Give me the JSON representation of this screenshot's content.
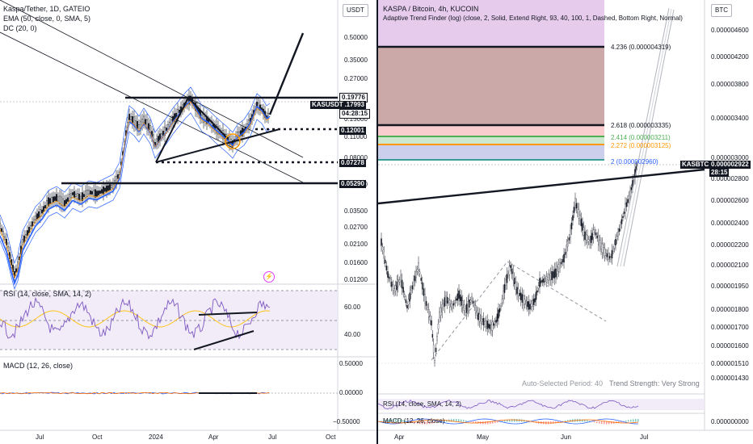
{
  "left": {
    "legend": {
      "line1": "Kaspa/Tether, 1D, GATEIO",
      "line2": "EMA (50, close, 0, SMA, 5)",
      "line3": "DC (20, 0)"
    },
    "currency": "USDT",
    "price_axis": [
      "0.50000",
      "0.35000",
      "0.27000",
      "0.15000",
      "0.11000",
      "0.08000",
      "0.05290",
      "0.03500",
      "0.02700",
      "0.02100",
      "0.01600",
      "0.01200"
    ],
    "price_tags": [
      {
        "value": "0.19776",
        "style": "light"
      },
      {
        "value": "0.17993",
        "style": "dark"
      },
      {
        "value": "04:28:15",
        "style": "light"
      },
      {
        "value": "0.12001",
        "style": "dark"
      },
      {
        "value": "0.07278",
        "style": "dark"
      },
      {
        "value": "0.05290",
        "style": "dark"
      }
    ],
    "symbol_tag": "KASUSDT",
    "rsi": {
      "label": "RSI (14, close, SMA, 14, 2)",
      "levels": [
        "60.00",
        "40.00"
      ]
    },
    "macd": {
      "label": "MACD (12, 26, close)",
      "levels": [
        "0.50000",
        "0.00000",
        "−0.50000"
      ]
    },
    "time_axis": [
      "Jul",
      "Oct",
      "2024",
      "Apr",
      "Jul",
      "Oct"
    ]
  },
  "right": {
    "legend": {
      "line1": "KASPA / Bitcoin, 4h, KUCOIN",
      "line2": "Adaptive Trend Finder (log) (close, 2, Solid, Extend Right, 93, 40, 100, 1, Dashed, Bottom Right, Normal)"
    },
    "currency": "BTC",
    "price_axis": [
      "0.000004600",
      "0.000004200",
      "0.000003800",
      "0.000003400",
      "0.000003000",
      "0.000002800",
      "0.000002600",
      "0.000002400",
      "0.000002200",
      "0.000002100",
      "0.000001950",
      "0.000001800",
      "0.000001700",
      "0.000001600",
      "0.000001510",
      "0.000001430",
      "0.000000000"
    ],
    "fib_levels": [
      {
        "label": "4.236 (0.000004319)",
        "color": "#131722"
      },
      {
        "label": "2.618 (0.000003335)",
        "color": "#131722"
      },
      {
        "label": "2.414 (0.000003211)",
        "color": "#4caf50"
      },
      {
        "label": "2.272 (0.000003125)",
        "color": "#ff9800"
      },
      {
        "label": "2 (0.000002960)",
        "color": "#2962ff"
      }
    ],
    "price_tag": {
      "value": "0.000002922",
      "countdown": "28:15"
    },
    "symbol_tag": "KASBTC",
    "trend_info": {
      "period": "Auto-Selected Period: 40",
      "strength": "Trend Strength: Very Strong"
    },
    "rsi_label": "RSI (14, close, SMA, 14, 2)",
    "macd_label": "MACD (12, 26, close)",
    "time_axis": [
      "Apr",
      "May",
      "Jun",
      "Jul"
    ]
  }
}
